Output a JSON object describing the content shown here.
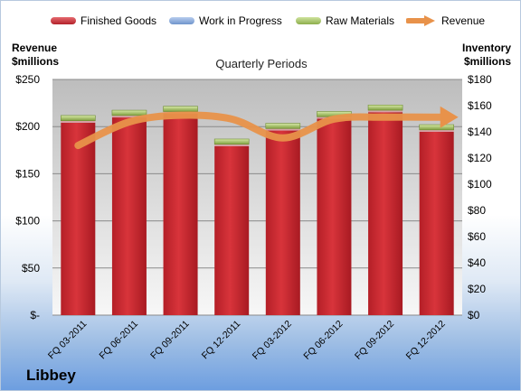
{
  "legend": {
    "finished": "Finished Goods",
    "wip": "Work in Progress",
    "raw": "Raw Materials",
    "revenue": "Revenue"
  },
  "colors": {
    "finished": "#c3272e",
    "wip": "#7ea3d8",
    "raw": "#9bbb59",
    "revenue": "#e8924a"
  },
  "ylabel_left": [
    "Revenue",
    "$millions"
  ],
  "ylabel_right": [
    "Inventory",
    "$millions"
  ],
  "company": "Libbey",
  "chart_data": {
    "type": "bar",
    "title": "Quarterly Periods",
    "categories": [
      "FQ 03-2011",
      "FQ 06-2011",
      "FQ 09-2011",
      "FQ 12-2011",
      "FQ 03-2012",
      "FQ 06-2012",
      "FQ 09-2012",
      "FQ 12-2012"
    ],
    "series": [
      {
        "name": "Finished Goods",
        "axis": "right",
        "stacked": true,
        "values": [
          147,
          151,
          154,
          129,
          141,
          150,
          155,
          140
        ]
      },
      {
        "name": "Work in Progress",
        "axis": "right",
        "stacked": true,
        "values": [
          1.5,
          1.5,
          1.5,
          1.5,
          1.5,
          1.5,
          1.5,
          1.5
        ]
      },
      {
        "name": "Raw Materials",
        "axis": "right",
        "stacked": true,
        "values": [
          4,
          4,
          4,
          4,
          4,
          4,
          4,
          4
        ]
      },
      {
        "name": "Revenue",
        "axis": "left",
        "type": "line",
        "values": [
          180,
          205,
          212,
          208,
          188,
          208,
          210,
          210
        ]
      }
    ],
    "left_axis": {
      "ticks": [
        "$-",
        "$50",
        "$100",
        "$150",
        "$200",
        "$250"
      ],
      "ylim": [
        0,
        250
      ]
    },
    "right_axis": {
      "ticks": [
        "$0",
        "$20",
        "$40",
        "$60",
        "$80",
        "$100",
        "$120",
        "$140",
        "$160",
        "$180"
      ],
      "ylim": [
        0,
        180
      ]
    },
    "grid": true
  }
}
